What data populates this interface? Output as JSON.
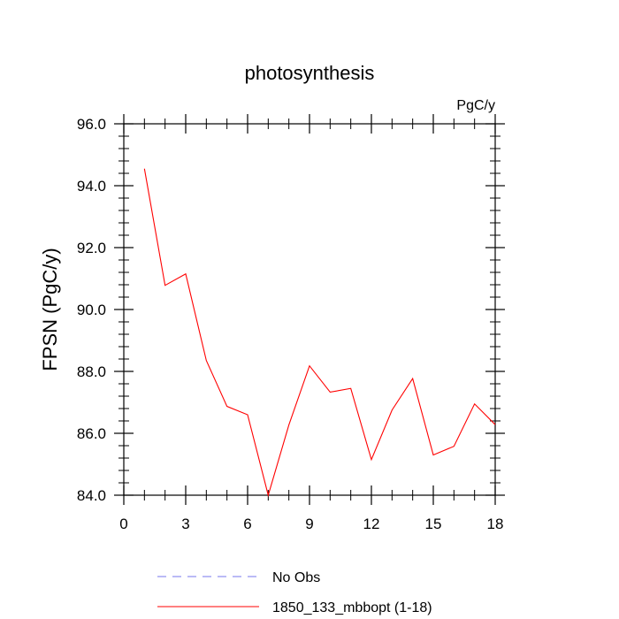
{
  "chart_data": {
    "type": "line",
    "title": "photosynthesis",
    "units_label": "PgC/y",
    "ylabel": "FPSN  (PgC/y)",
    "xlabel": "",
    "xlim": [
      0,
      18
    ],
    "ylim": [
      84.0,
      96.0
    ],
    "x_ticks": [
      0,
      3,
      6,
      9,
      12,
      15,
      18
    ],
    "x_tick_labels": [
      "0",
      "3",
      "6",
      "9",
      "12",
      "15",
      "18"
    ],
    "y_ticks": [
      84.0,
      86.0,
      88.0,
      90.0,
      92.0,
      94.0,
      96.0
    ],
    "y_tick_labels": [
      "84.0",
      "86.0",
      "88.0",
      "90.0",
      "92.0",
      "94.0",
      "96.0"
    ],
    "grid": false,
    "legend_position": "bottom",
    "series": [
      {
        "name": "1850_133_mbbopt (1-18)",
        "color": "#ff0000",
        "dash": "solid",
        "x": [
          1,
          2,
          3,
          4,
          5,
          6,
          7,
          8,
          9,
          10,
          11,
          12,
          13,
          14,
          15,
          16,
          17,
          18
        ],
        "y": [
          94.55,
          90.78,
          91.15,
          88.35,
          86.87,
          86.6,
          84.0,
          86.27,
          88.18,
          87.33,
          87.45,
          85.15,
          86.75,
          87.77,
          85.3,
          85.58,
          86.95,
          86.28
        ]
      }
    ],
    "legend": [
      {
        "label": "No Obs",
        "color": "#7777ee",
        "dash": "dashed"
      },
      {
        "label": "1850_133_mbbopt (1-18)",
        "color": "#ff0000",
        "dash": "solid"
      }
    ]
  }
}
